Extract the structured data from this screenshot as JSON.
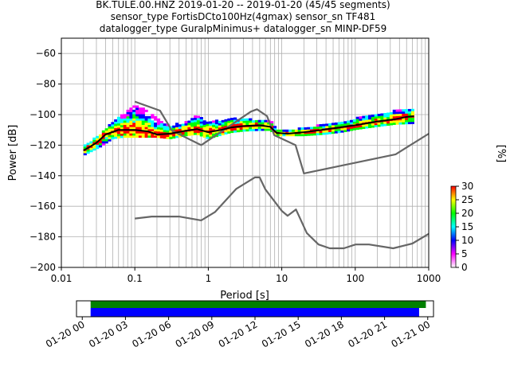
{
  "title_lines": [
    "BK.TULE.00.HNZ   2019-01-20 -- 2019-01-20  (45/45 segments)",
    "sensor_type FortisDCto100Hz(4gmax) sensor_sn TF481",
    "datalogger_type GuralpMinimus+ datalogger_sn MINP-DF59"
  ],
  "chart_data": [
    {
      "type": "heatmap",
      "xlabel": "Period [s]",
      "ylabel": "Power [dB]",
      "x_scale": "log",
      "xlim": [
        0.01,
        1000
      ],
      "ylim": [
        -200,
        -50
      ],
      "x_ticks": [
        0.01,
        0.1,
        1,
        10,
        100,
        1000
      ],
      "x_tick_labels": [
        "0.01",
        "0.1",
        "1",
        "10",
        "100",
        "1000"
      ],
      "y_ticks": [
        -200,
        -180,
        -160,
        -140,
        -120,
        -100,
        -80,
        -60
      ],
      "y_tick_labels": [
        "−200",
        "−180",
        "−160",
        "−140",
        "−120",
        "−100",
        "−80",
        "−60"
      ],
      "grid": true,
      "colorbar": {
        "label": "[%]",
        "range": [
          0,
          30
        ],
        "ticks": [
          0,
          5,
          10,
          15,
          20,
          25,
          30
        ],
        "tick_labels": [
          "0",
          "5",
          "10",
          "15",
          "20",
          "25",
          "30"
        ],
        "colors": [
          "#ffffff",
          "#ff00ff",
          "#0000ff",
          "#00ffff",
          "#00ff00",
          "#ffff00",
          "#ff0000"
        ]
      },
      "series": [
        {
          "role": "noise-model-high",
          "color": "#666666",
          "points": [
            [
              0.1,
              -91.5
            ],
            [
              0.22,
              -97.4
            ],
            [
              0.32,
              -110.5
            ],
            [
              0.8,
              -120
            ],
            [
              3.8,
              -98
            ],
            [
              4.6,
              -96.5
            ],
            [
              6.3,
              -101
            ],
            [
              7.9,
              -113.5
            ],
            [
              15.4,
              -120
            ],
            [
              20,
              -138.5
            ],
            [
              354.8,
              -126
            ],
            [
              1000,
              -112.5
            ]
          ]
        },
        {
          "role": "noise-model-low",
          "color": "#666666",
          "points": [
            [
              0.1,
              -168
            ],
            [
              0.17,
              -166.7
            ],
            [
              0.4,
              -166.7
            ],
            [
              0.8,
              -169.2
            ],
            [
              1.24,
              -163.7
            ],
            [
              2.4,
              -148.6
            ],
            [
              4.3,
              -141.1
            ],
            [
              5,
              -141.1
            ],
            [
              6,
              -149
            ],
            [
              10,
              -163
            ],
            [
              12,
              -166.2
            ],
            [
              15.6,
              -162.1
            ],
            [
              21.9,
              -177.5
            ],
            [
              31.6,
              -185
            ],
            [
              45,
              -187.5
            ],
            [
              70,
              -187.5
            ],
            [
              101,
              -185
            ],
            [
              154,
              -185
            ],
            [
              328,
              -187.5
            ],
            [
              600,
              -184.4
            ],
            [
              1000,
              -178
            ]
          ]
        },
        {
          "role": "mean-psd",
          "color": "#000000",
          "points": [
            [
              0.02,
              -123.5
            ],
            [
              0.03,
              -118.5
            ],
            [
              0.04,
              -113
            ],
            [
              0.06,
              -110
            ],
            [
              0.1,
              -110
            ],
            [
              0.15,
              -111
            ],
            [
              0.2,
              -113
            ],
            [
              0.3,
              -112.5
            ],
            [
              0.5,
              -110.5
            ],
            [
              0.7,
              -109.5
            ],
            [
              1,
              -111.5
            ],
            [
              1.5,
              -110
            ],
            [
              2,
              -108.5
            ],
            [
              3,
              -107.5
            ],
            [
              5,
              -107
            ],
            [
              7,
              -108
            ],
            [
              8.5,
              -112
            ],
            [
              12,
              -112.5
            ],
            [
              20,
              -111.5
            ],
            [
              35,
              -110
            ],
            [
              60,
              -108.5
            ],
            [
              100,
              -107
            ],
            [
              200,
              -104.5
            ],
            [
              350,
              -103
            ],
            [
              500,
              -101.5
            ],
            [
              630,
              -101
            ]
          ]
        },
        {
          "role": "psd-upper-envelope",
          "color": "#9a00ff",
          "points": [
            [
              0.02,
              -121
            ],
            [
              0.035,
              -113
            ],
            [
              0.05,
              -105
            ],
            [
              0.07,
              -99
            ],
            [
              0.1,
              -94
            ],
            [
              0.14,
              -97
            ],
            [
              0.2,
              -103
            ],
            [
              0.3,
              -108
            ],
            [
              0.5,
              -105
            ],
            [
              0.7,
              -101
            ],
            [
              1,
              -105
            ],
            [
              1.5,
              -104
            ],
            [
              2,
              -103
            ],
            [
              3,
              -103
            ],
            [
              5,
              -104
            ],
            [
              7,
              -104
            ],
            [
              8.5,
              -110
            ],
            [
              12,
              -110.5
            ],
            [
              20,
              -109
            ],
            [
              40,
              -107
            ],
            [
              70,
              -105.5
            ],
            [
              100,
              -103
            ],
            [
              200,
              -100
            ],
            [
              350,
              -98
            ],
            [
              630,
              -97.5
            ]
          ]
        },
        {
          "role": "psd-lower-envelope",
          "color": "#ff0000",
          "points": [
            [
              0.02,
              -127
            ],
            [
              0.035,
              -121
            ],
            [
              0.05,
              -116
            ],
            [
              0.07,
              -115
            ],
            [
              0.1,
              -115
            ],
            [
              0.2,
              -115
            ],
            [
              0.3,
              -116
            ],
            [
              0.5,
              -114
            ],
            [
              0.7,
              -113
            ],
            [
              1,
              -116
            ],
            [
              2,
              -112
            ],
            [
              3,
              -111
            ],
            [
              5,
              -110.5
            ],
            [
              7,
              -110.5
            ],
            [
              8.5,
              -114
            ],
            [
              12,
              -114
            ],
            [
              20,
              -114
            ],
            [
              40,
              -113
            ],
            [
              70,
              -111.5
            ],
            [
              100,
              -110
            ],
            [
              200,
              -108
            ],
            [
              350,
              -106.5
            ],
            [
              630,
              -106
            ]
          ]
        }
      ]
    },
    {
      "type": "bar",
      "role": "data-availability",
      "x_tick_labels": [
        "01-20 00",
        "01-20 03",
        "01-20 06",
        "01-20 09",
        "01-20 12",
        "01-20 15",
        "01-20 18",
        "01-20 21",
        "01-21 00"
      ],
      "xlim_hours": [
        -0.4,
        24.4
      ],
      "bars": [
        {
          "role": "data",
          "color": "#008000",
          "start_hour": 0.58,
          "end_hour": 23.87
        },
        {
          "role": "processed",
          "color": "#0000ff",
          "start_hour": 0.58,
          "end_hour": 23.4
        }
      ]
    }
  ]
}
